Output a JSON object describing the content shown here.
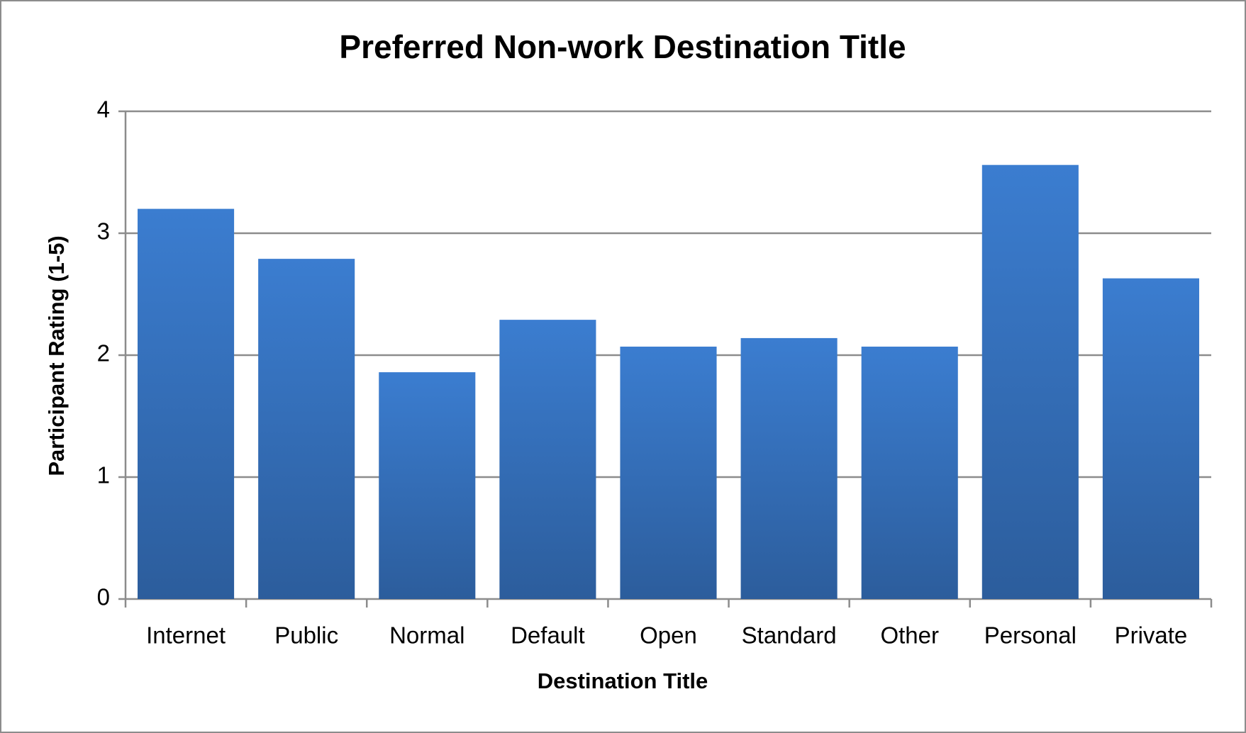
{
  "chart_data": {
    "type": "bar",
    "title": "Preferred Non-work Destination Title",
    "x_label": "Destination Title",
    "y_label": "Participant Rating (1-5)",
    "categories": [
      "Internet",
      "Public",
      "Normal",
      "Default",
      "Open",
      "Standard",
      "Other",
      "Personal",
      "Private"
    ],
    "values": [
      3.2,
      2.79,
      1.86,
      2.29,
      2.07,
      2.14,
      2.07,
      3.56,
      2.63
    ],
    "color": "#3b7dd0",
    "ylim": [
      0,
      4
    ],
    "yticks": [
      0,
      1,
      2,
      3,
      4
    ],
    "grid": true
  }
}
